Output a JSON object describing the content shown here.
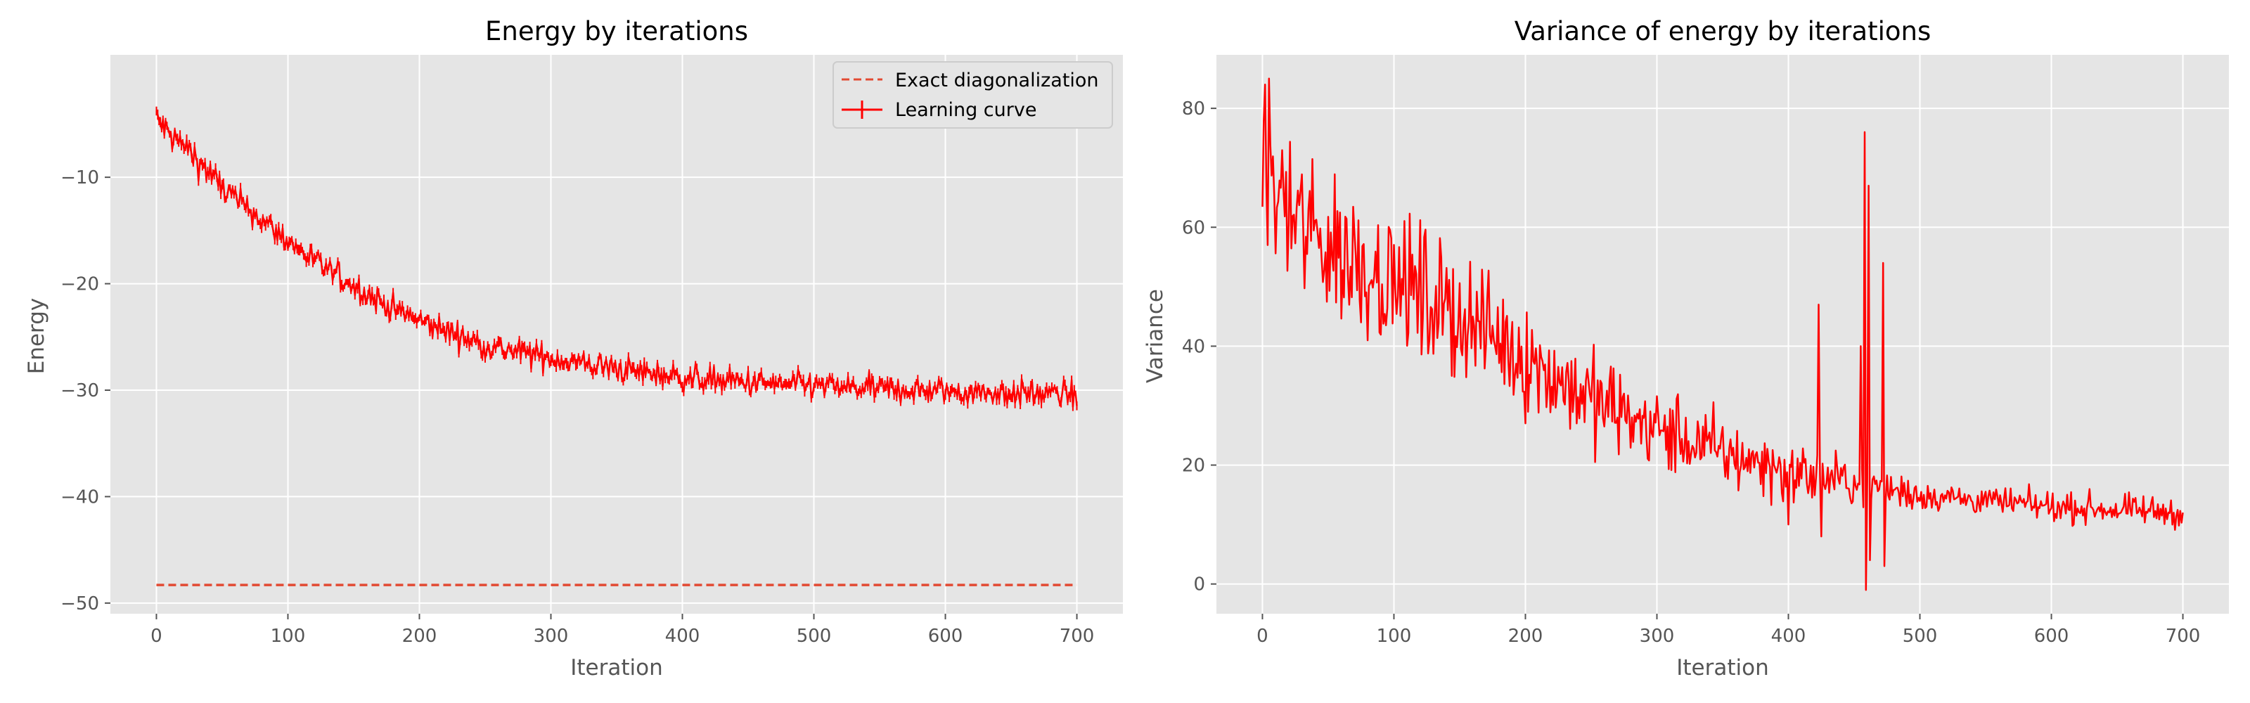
{
  "chart_data": [
    {
      "type": "line",
      "title": "Energy by iterations",
      "xlabel": "Iteration",
      "ylabel": "Energy",
      "xlim": [
        -35,
        735
      ],
      "ylim": [
        -51,
        1.5
      ],
      "xticks": [
        0,
        100,
        200,
        300,
        400,
        500,
        600,
        700
      ],
      "yticks": [
        -50,
        -40,
        -30,
        -20,
        -10
      ],
      "ytick_labels": [
        "−50",
        "−40",
        "−30",
        "−20",
        "−10"
      ],
      "grid": true,
      "legend_position": "top-right",
      "colors": {
        "curve": "#ff0000",
        "reference": "#e24a33",
        "background": "#e5e5e5",
        "grid": "#ffffff"
      },
      "series": [
        {
          "name": "Exact diagonalization",
          "style": "dashed",
          "x": [
            0,
            700
          ],
          "y": [
            -48.3,
            -48.3
          ]
        },
        {
          "name": "Learning curve",
          "style": "solid-errorbar",
          "x": [
            0,
            10,
            25,
            50,
            75,
            100,
            125,
            150,
            175,
            200,
            250,
            300,
            350,
            400,
            450,
            500,
            550,
            600,
            650,
            700
          ],
          "y": [
            -4.5,
            -6.0,
            -7.5,
            -11.0,
            -13.5,
            -16.0,
            -18.3,
            -20.2,
            -22.0,
            -23.5,
            -25.8,
            -27.0,
            -28.0,
            -28.8,
            -29.3,
            -29.6,
            -29.9,
            -30.1,
            -30.3,
            -30.4
          ],
          "noise": 0.6
        }
      ]
    },
    {
      "type": "line",
      "title": "Variance of energy by iterations",
      "xlabel": "Iteration",
      "ylabel": "Variance",
      "xlim": [
        -35,
        735
      ],
      "ylim": [
        -5,
        89
      ],
      "xticks": [
        0,
        100,
        200,
        300,
        400,
        500,
        600,
        700
      ],
      "yticks": [
        0,
        20,
        40,
        60,
        80
      ],
      "grid": true,
      "colors": {
        "curve": "#ff0000",
        "background": "#e5e5e5",
        "grid": "#ffffff"
      },
      "series": [
        {
          "x": [
            0,
            10,
            25,
            50,
            75,
            100,
            125,
            150,
            175,
            200,
            250,
            300,
            350,
            400,
            450,
            500,
            550,
            600,
            650,
            700
          ],
          "y": [
            69,
            66,
            61,
            57,
            54,
            51,
            48,
            45,
            42,
            38,
            31,
            26,
            22,
            19,
            17,
            15,
            14,
            13,
            12.5,
            12
          ],
          "noise_start": 7,
          "noise_end": 1.2,
          "spikes": [
            {
              "x": 2,
              "y": 84
            },
            {
              "x": 4,
              "y": 57
            },
            {
              "x": 5,
              "y": 85
            },
            {
              "x": 400,
              "y": 10
            },
            {
              "x": 423,
              "y": 47
            },
            {
              "x": 425,
              "y": 8
            },
            {
              "x": 455,
              "y": 40
            },
            {
              "x": 458,
              "y": 76
            },
            {
              "x": 459,
              "y": -1
            },
            {
              "x": 461,
              "y": 67
            },
            {
              "x": 462,
              "y": 4
            },
            {
              "x": 472,
              "y": 54
            },
            {
              "x": 473,
              "y": 3
            }
          ]
        }
      ]
    }
  ]
}
